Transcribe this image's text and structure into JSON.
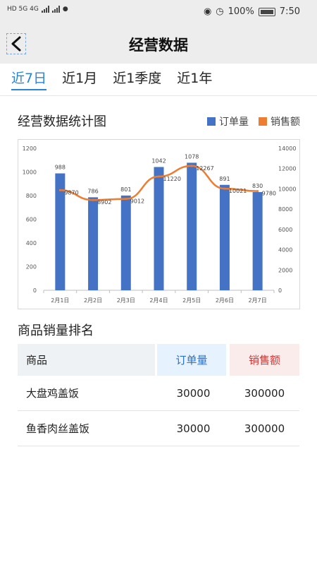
{
  "status": {
    "left_text": "HD 5G 4G",
    "battery": "100%",
    "time": "7:50"
  },
  "header": {
    "title": "经营数据"
  },
  "tabs": [
    {
      "label": "近7日",
      "active": true
    },
    {
      "label": "近1月",
      "active": false
    },
    {
      "label": "近1季度",
      "active": false
    },
    {
      "label": "近1年",
      "active": false
    }
  ],
  "chart_section": {
    "title": "经营数据统计图",
    "legend": [
      {
        "label": "订单量",
        "color": "#4472c4"
      },
      {
        "label": "销售额",
        "color": "#ed7d31"
      }
    ]
  },
  "chart_data": {
    "type": "bar",
    "categories": [
      "2月1日",
      "2月2日",
      "2月3日",
      "2月4日",
      "2月5日",
      "2月6日",
      "2月7日"
    ],
    "series": [
      {
        "name": "订单量",
        "type": "bar",
        "axis": "left",
        "color": "#4472c4",
        "values": [
          988,
          786,
          801,
          1042,
          1078,
          891,
          830
        ]
      },
      {
        "name": "销售额",
        "type": "line",
        "axis": "right",
        "color": "#ed7d31",
        "values": [
          9870,
          8902,
          9012,
          11220,
          12267,
          10021,
          9780
        ]
      }
    ],
    "y_left": {
      "min": 0,
      "max": 1200,
      "ticks": [
        0,
        200,
        400,
        600,
        800,
        1000,
        1200
      ]
    },
    "y_right": {
      "min": 0,
      "max": 14000,
      "ticks": [
        0,
        2000,
        4000,
        6000,
        8000,
        10000,
        12000,
        14000
      ]
    },
    "grid": false,
    "legend_position": "top-right"
  },
  "ranking": {
    "title": "商品销量排名",
    "columns": [
      "商品",
      "订单量",
      "销售额"
    ],
    "rows": [
      {
        "name": "大盘鸡盖饭",
        "orders": "30000",
        "sales": "300000"
      },
      {
        "name": "鱼香肉丝盖饭",
        "orders": "30000",
        "sales": "300000"
      }
    ]
  }
}
